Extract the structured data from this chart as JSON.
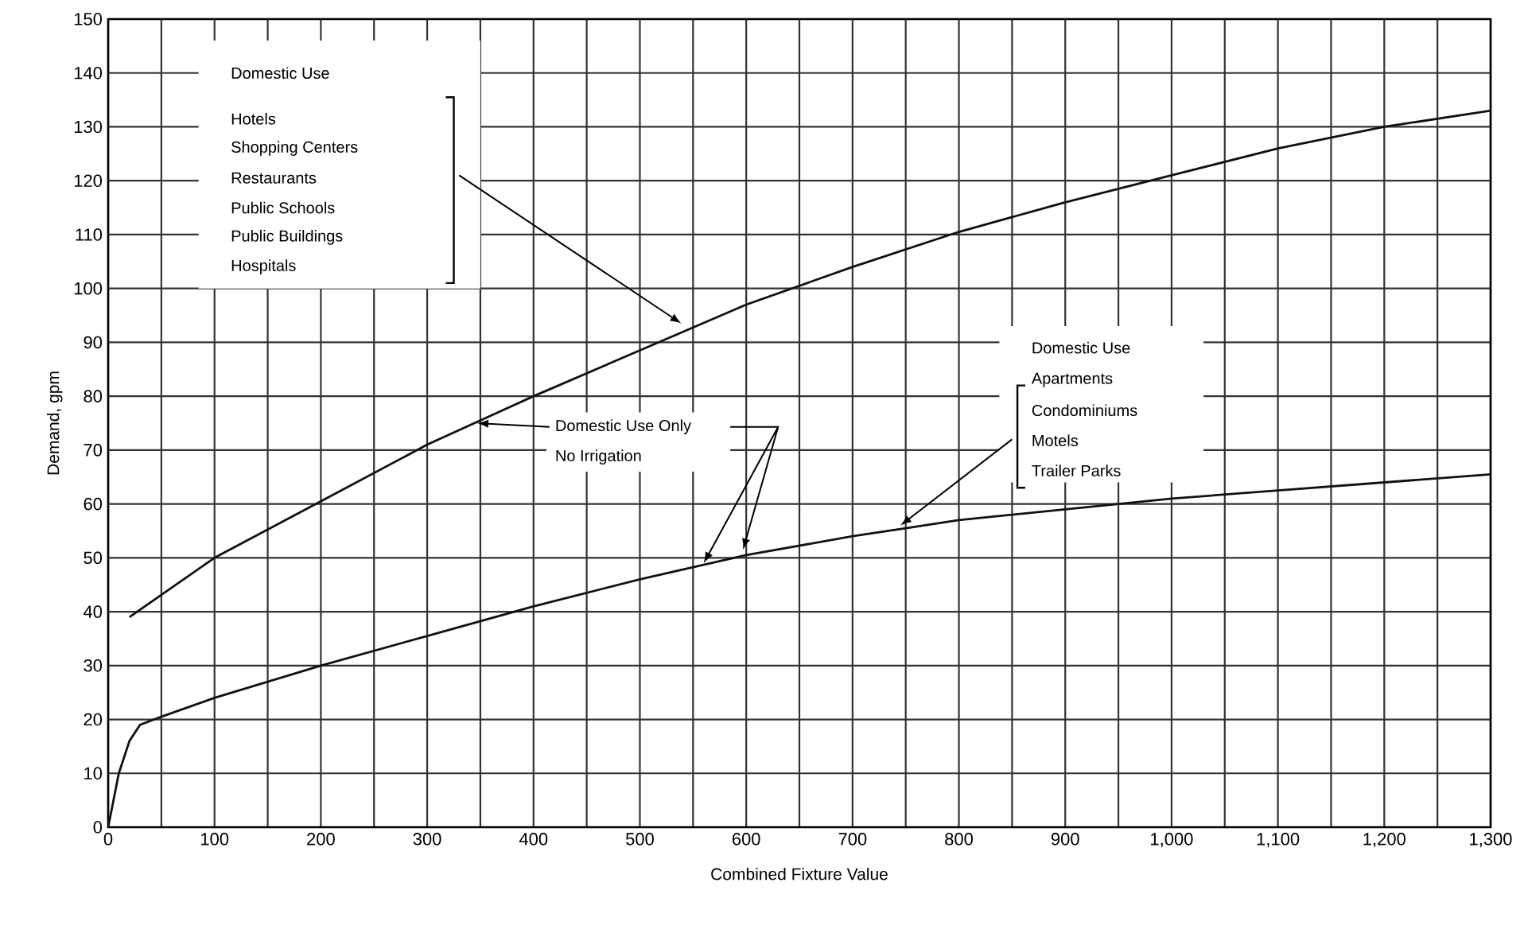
{
  "chart_data": {
    "type": "line",
    "xlabel": "Combined Fixture Value",
    "ylabel": "Demand, gpm",
    "series": [
      {
        "color": "#111111",
        "x": [
          20,
          100,
          200,
          300,
          400,
          500,
          600,
          700,
          800,
          900,
          1000,
          1100,
          1200,
          1300
        ],
        "values": [
          39,
          50,
          60.5,
          71,
          80,
          88.5,
          97,
          104,
          110.5,
          116,
          121,
          126,
          130,
          133
        ]
      },
      {
        "color": "#111111",
        "x": [
          0,
          10,
          20,
          30,
          50,
          100,
          200,
          300,
          400,
          500,
          600,
          700,
          750,
          800,
          900,
          1000,
          1100,
          1200,
          1300
        ],
        "values": [
          0,
          10,
          16,
          19,
          20.5,
          24,
          30,
          35.5,
          41,
          46,
          50.5,
          54,
          55.5,
          57,
          59,
          61,
          62.5,
          64,
          65.5
        ]
      }
    ],
    "xlim": [
      0,
      1300
    ],
    "ylim": [
      0,
      150
    ],
    "xticks": [
      0,
      {
        "value": 50,
        "label": null
      },
      100,
      {
        "value": 150,
        "label": null
      },
      200,
      {
        "value": 250,
        "label": null
      },
      300,
      {
        "value": 350,
        "label": null
      },
      400,
      {
        "value": 450,
        "label": null
      },
      500,
      {
        "value": 550,
        "label": null
      },
      600,
      {
        "value": 650,
        "label": null
      },
      700,
      {
        "value": 750,
        "label": null
      },
      800,
      {
        "value": 850,
        "label": null
      },
      900,
      {
        "value": 950,
        "label": null
      },
      {
        "value": 1000,
        "label": "1,000"
      },
      {
        "value": 1050,
        "label": null
      },
      {
        "value": 1100,
        "label": "1,100"
      },
      {
        "value": 1150,
        "label": null
      },
      {
        "value": 1200,
        "label": "1,200"
      },
      {
        "value": 1250,
        "label": null
      },
      {
        "value": 1300,
        "label": "1,300"
      }
    ],
    "yticks": [
      0,
      10,
      20,
      30,
      40,
      50,
      60,
      70,
      80,
      90,
      100,
      110,
      120,
      130,
      140,
      150
    ],
    "grid": true,
    "annotations": [
      "Domestic Use",
      "Hotels",
      "Shopping Centers",
      "Restaurants",
      "Public Schools",
      "Public Buildings",
      "Hospitals",
      {
        "text": "Domestic Use Only",
        "x": 347,
        "y": 75
      },
      "No Irrigation",
      "Domestic Use",
      "Apartments",
      "Condominiums",
      "Motels",
      "Trailer Parks"
    ]
  }
}
